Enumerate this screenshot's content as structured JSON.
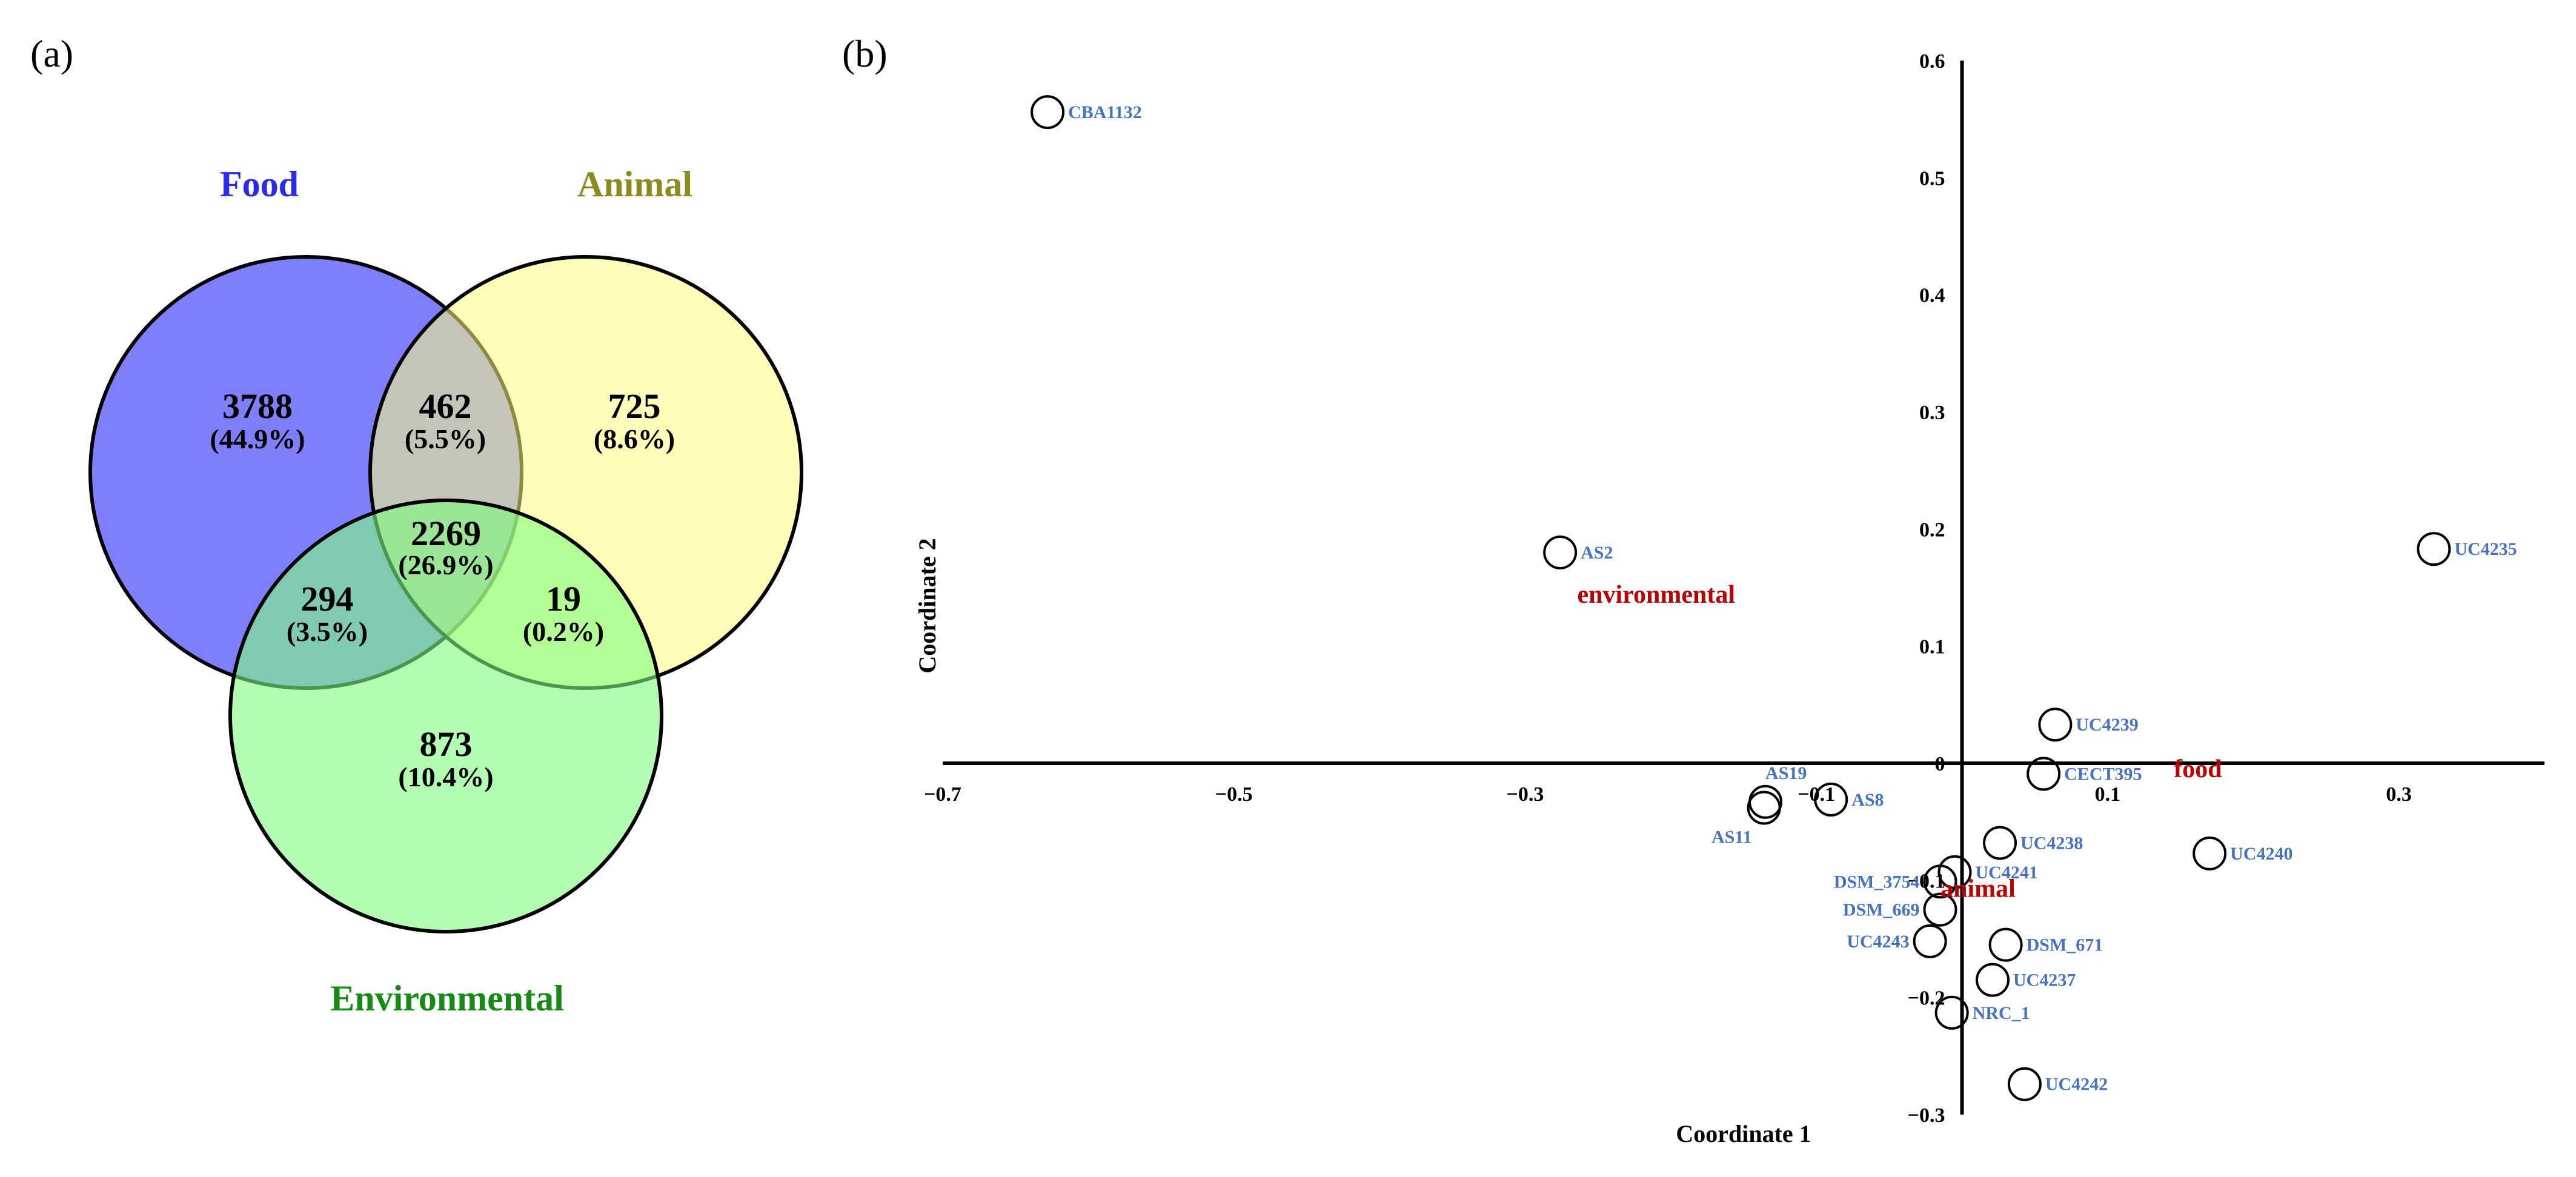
{
  "panel_a": {
    "label": "(a)",
    "sets": {
      "food": {
        "name": "Food",
        "color": "#2a2aee",
        "fill": "#7f7ffc"
      },
      "animal": {
        "name": "Animal",
        "color": "#8a8a1e",
        "fill": "#fdfd7f"
      },
      "environmental": {
        "name": "Environmental",
        "color": "#148c14",
        "fill": "#7ffc7f"
      }
    },
    "regions": {
      "food_only": {
        "count": "3788",
        "pct": "(44.9%)"
      },
      "food_animal": {
        "count": "462",
        "pct": "(5.5%)"
      },
      "animal_only": {
        "count": "725",
        "pct": "(8.6%)"
      },
      "all_three": {
        "count": "2269",
        "pct": "(26.9%)"
      },
      "food_env": {
        "count": "294",
        "pct": "(3.5%)"
      },
      "animal_env": {
        "count": "19",
        "pct": "(0.2%)"
      },
      "env_only": {
        "count": "873",
        "pct": "(10.4%)"
      }
    }
  },
  "panel_b": {
    "label": "(b)",
    "chart_data": {
      "type": "scatter",
      "xlabel": "Coordinate 1",
      "ylabel": "Coordinate 2",
      "xlim": [
        -0.7,
        0.4
      ],
      "ylim": [
        -0.3,
        0.6
      ],
      "x_ticks": [
        {
          "v": -0.7,
          "t": "−0.7"
        },
        {
          "v": -0.5,
          "t": "−0.5"
        },
        {
          "v": -0.3,
          "t": "−0.3"
        },
        {
          "v": -0.1,
          "t": "−0.1"
        },
        {
          "v": 0.1,
          "t": "0.1"
        },
        {
          "v": 0.3,
          "t": "0.3"
        }
      ],
      "y_ticks": [
        {
          "v": 0.6,
          "t": "0.6"
        },
        {
          "v": 0.5,
          "t": "0.5"
        },
        {
          "v": 0.4,
          "t": "0.4"
        },
        {
          "v": 0.3,
          "t": "0.3"
        },
        {
          "v": 0.2,
          "t": "0.2"
        },
        {
          "v": 0.1,
          "t": "0.1"
        },
        {
          "v": 0.0,
          "t": "0"
        },
        {
          "v": -0.1,
          "t": "−0.1"
        },
        {
          "v": -0.2,
          "t": "−0.2"
        },
        {
          "v": -0.3,
          "t": "−0.3"
        }
      ],
      "label_color": "#4472c4",
      "group_color": "#c00000",
      "points": [
        {
          "name": "CBA1132",
          "x": -0.628,
          "y": 0.556,
          "pos": "right"
        },
        {
          "name": "AS2",
          "x": -0.276,
          "y": 0.18,
          "pos": "right"
        },
        {
          "name": "UC4235",
          "x": 0.324,
          "y": 0.183,
          "pos": "right"
        },
        {
          "name": "UC4239",
          "x": 0.064,
          "y": 0.033,
          "pos": "right"
        },
        {
          "name": "CECT395",
          "x": 0.056,
          "y": -0.009,
          "pos": "right"
        },
        {
          "name": "AS19",
          "x": -0.135,
          "y": -0.033,
          "pos": "above"
        },
        {
          "name": "AS11",
          "x": -0.136,
          "y": -0.038,
          "pos": "belowleft"
        },
        {
          "name": "AS8",
          "x": -0.09,
          "y": -0.031,
          "pos": "right"
        },
        {
          "name": "UC4238",
          "x": 0.026,
          "y": -0.068,
          "pos": "right"
        },
        {
          "name": "UC4240",
          "x": 0.17,
          "y": -0.077,
          "pos": "right"
        },
        {
          "name": "UC4241",
          "x": -0.005,
          "y": -0.093,
          "pos": "right"
        },
        {
          "name": "DSM_3754",
          "x": -0.015,
          "y": -0.101,
          "pos": "left"
        },
        {
          "name": "DSM_669",
          "x": -0.015,
          "y": -0.125,
          "pos": "left"
        },
        {
          "name": "UC4243",
          "x": -0.022,
          "y": -0.152,
          "pos": "left"
        },
        {
          "name": "DSM_671",
          "x": 0.03,
          "y": -0.155,
          "pos": "right"
        },
        {
          "name": "UC4237",
          "x": 0.021,
          "y": -0.185,
          "pos": "right"
        },
        {
          "name": "NRC_1",
          "x": -0.007,
          "y": -0.213,
          "pos": "right"
        },
        {
          "name": "UC4242",
          "x": 0.043,
          "y": -0.274,
          "pos": "right"
        }
      ],
      "groups": [
        {
          "name": "environmental",
          "x": -0.21,
          "y": 0.137
        },
        {
          "name": "food",
          "x": 0.162,
          "y": -0.012
        },
        {
          "name": "animal",
          "x": 0.011,
          "y": -0.114
        }
      ]
    }
  }
}
